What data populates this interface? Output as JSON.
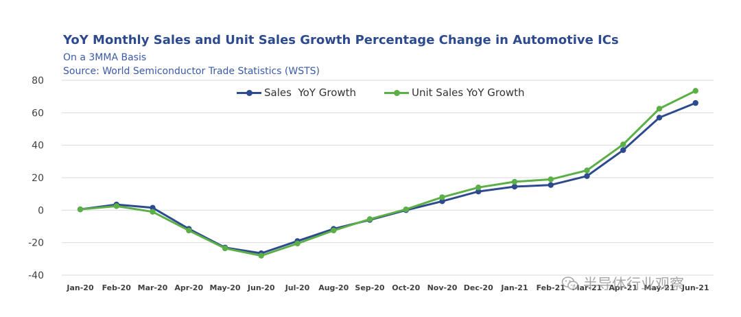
{
  "chart_data": {
    "type": "line",
    "title": "YoY Monthly Sales and Unit Sales Growth Percentage Change in Automotive ICs",
    "subtitle": "On a 3MMA Basis",
    "source": "Source: World Semiconductor Trade Statistics (WSTS)",
    "categories": [
      "Jan-20",
      "Feb-20",
      "Mar-20",
      "Apr-20",
      "May-20",
      "Jun-20",
      "Jul-20",
      "Aug-20",
      "Sep-20",
      "Oct-20",
      "Nov-20",
      "Dec-20",
      "Jan-21",
      "Feb-21",
      "Mar-21",
      "Apr-21",
      "May-21",
      "Jun-21"
    ],
    "series": [
      {
        "name": "Sales  YoY Growth",
        "color": "#2E4A8F",
        "values": [
          0.5,
          3.5,
          1.5,
          -11.5,
          -23,
          -26.5,
          -19,
          -11.5,
          -6,
          0,
          5.5,
          11.5,
          14.5,
          15.5,
          21,
          37,
          57,
          66
        ]
      },
      {
        "name": "Unit Sales YoY Growth",
        "color": "#5BAF47",
        "values": [
          0.5,
          2.5,
          -1,
          -12.5,
          -23.5,
          -28,
          -20.5,
          -12.5,
          -5.5,
          0.5,
          8,
          14,
          17.5,
          19,
          24.5,
          40.5,
          62.5,
          73.5
        ]
      }
    ],
    "ylim": [
      -40,
      80
    ],
    "yticks": [
      80,
      60,
      40,
      20,
      0,
      -20,
      -40
    ],
    "grid": true,
    "legend_position": "top-center"
  },
  "watermark": {
    "text": "半导体行业观察",
    "icon": "wechat-icon"
  }
}
